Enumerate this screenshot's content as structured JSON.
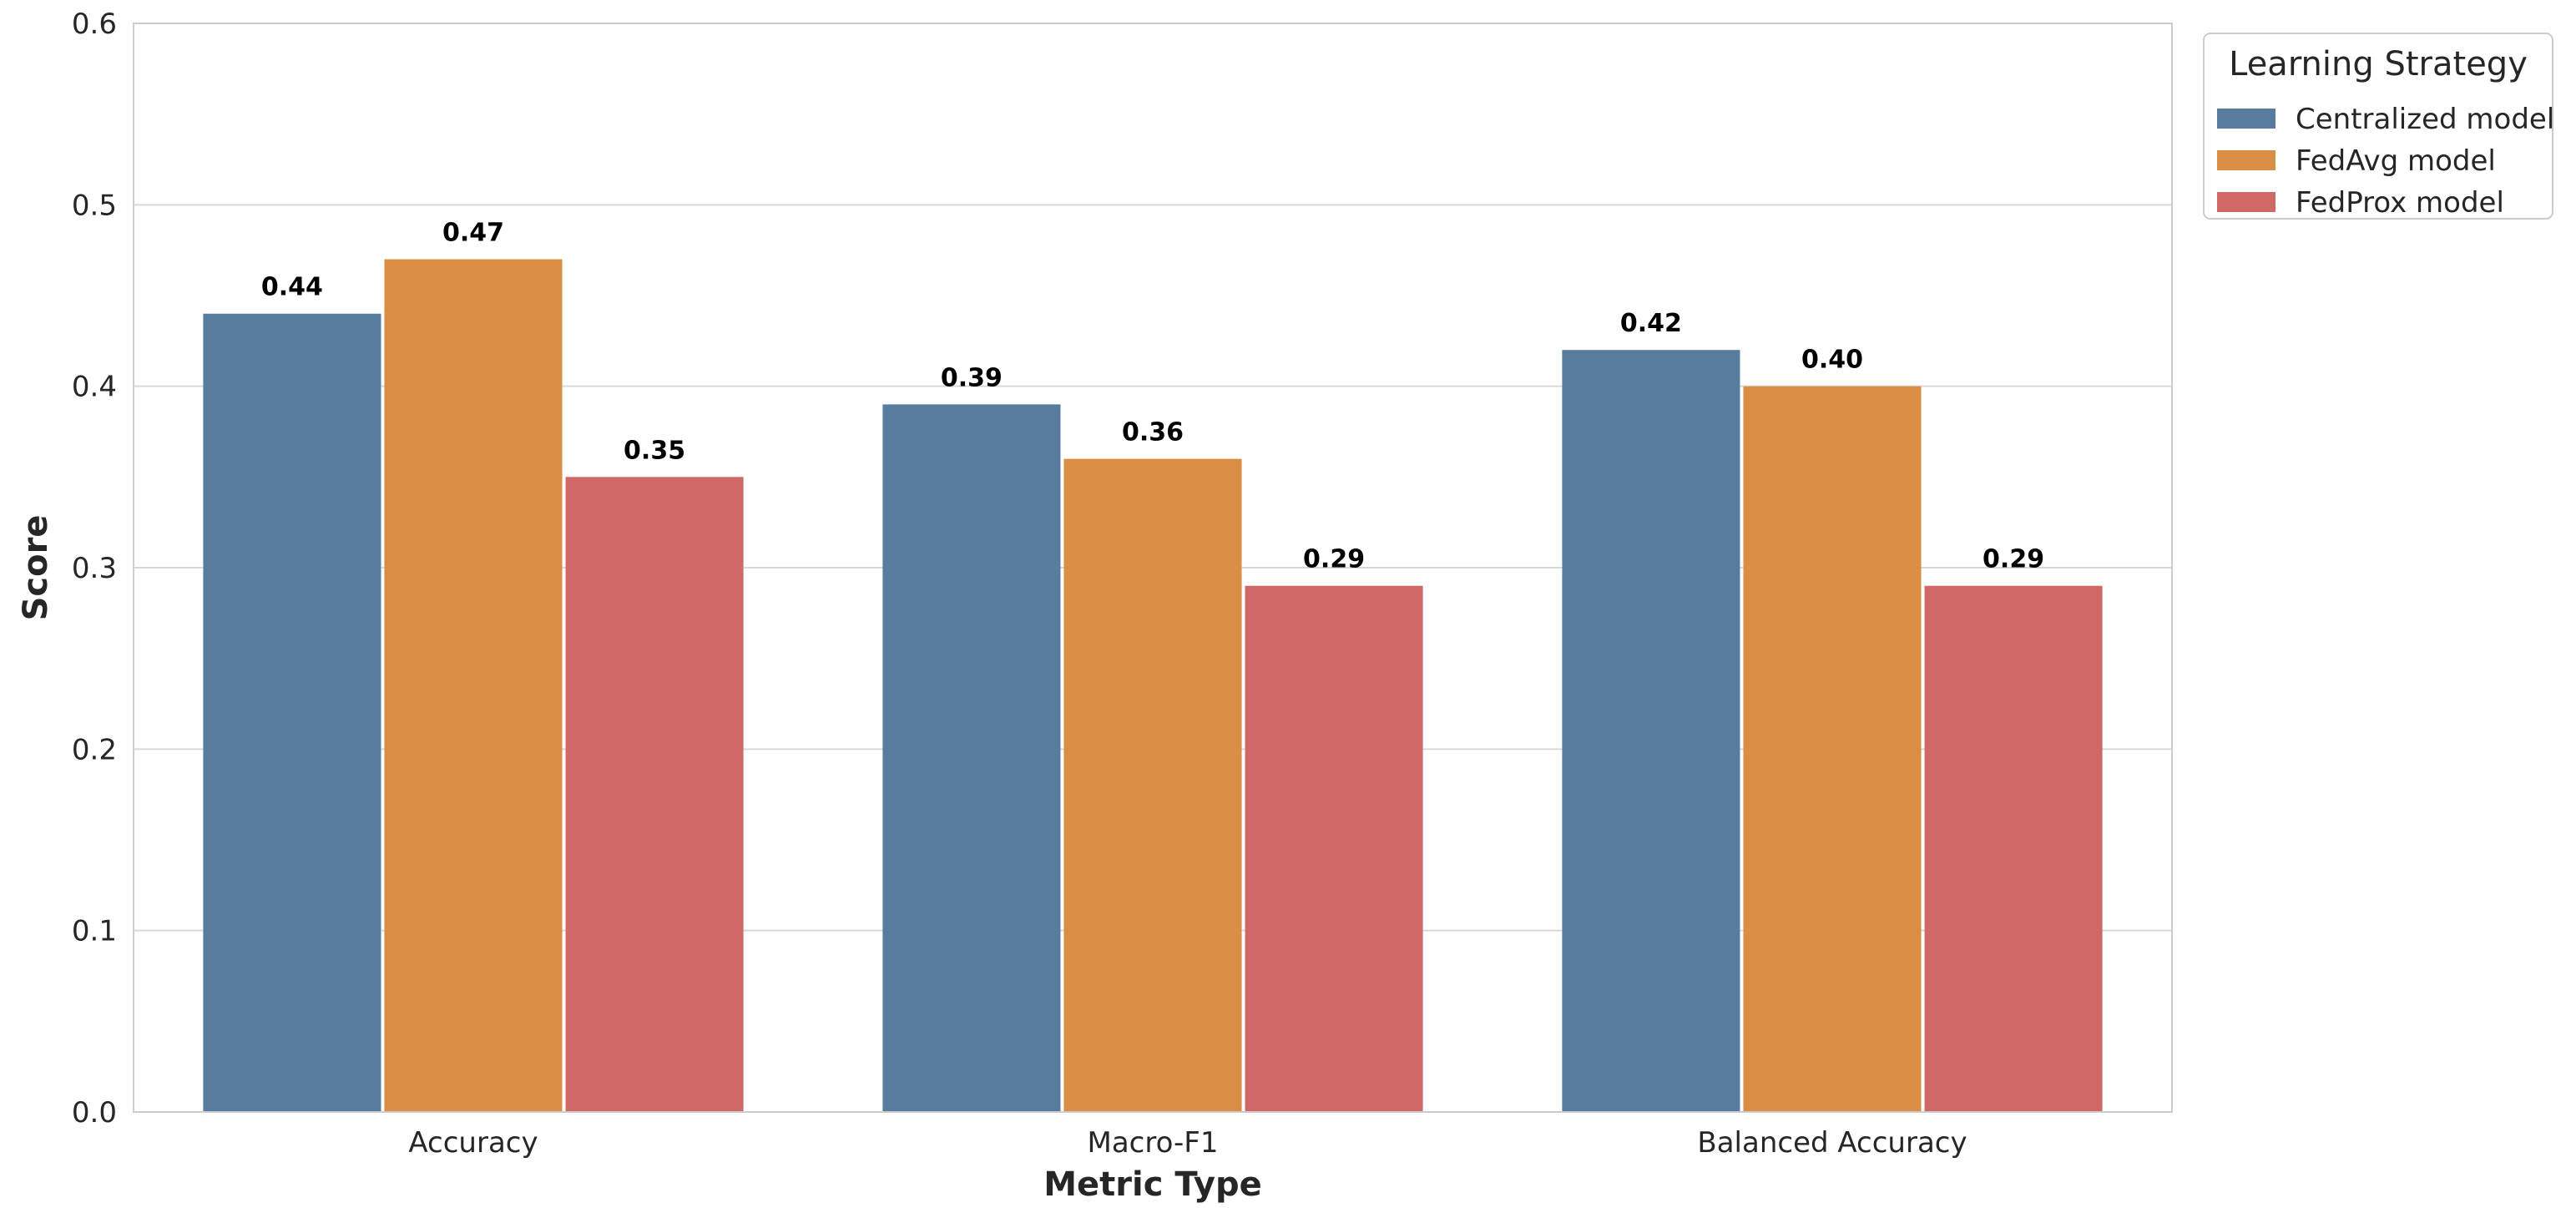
{
  "chart_data": {
    "type": "bar",
    "title": "",
    "xlabel": "Metric Type",
    "ylabel": "Score",
    "categories": [
      "Accuracy",
      "Macro-F1",
      "Balanced Accuracy"
    ],
    "series": [
      {
        "name": "Centralized model",
        "values": [
          0.44,
          0.39,
          0.42
        ],
        "labels": [
          "0.44",
          "0.39",
          "0.42"
        ],
        "color": "#587ba0"
      },
      {
        "name": "FedAvg model",
        "values": [
          0.47,
          0.36,
          0.4
        ],
        "labels": [
          "0.47",
          "0.36",
          "0.40"
        ],
        "color": "#d98d45"
      },
      {
        "name": "FedProx model",
        "values": [
          0.35,
          0.29,
          0.29
        ],
        "labels": [
          "0.35",
          "0.29",
          "0.29"
        ],
        "color": "#d06868"
      }
    ],
    "ylim": [
      0,
      0.6
    ],
    "yticks": [
      "0.0",
      "0.1",
      "0.2",
      "0.3",
      "0.4",
      "0.5",
      "0.6"
    ],
    "grid": "horizontal",
    "legend": {
      "title": "Learning Strategy",
      "placement": "outside-top-right"
    },
    "colors": {
      "grid": "#d9d9d9",
      "frame": "#cccccc",
      "text": "#262626"
    }
  }
}
